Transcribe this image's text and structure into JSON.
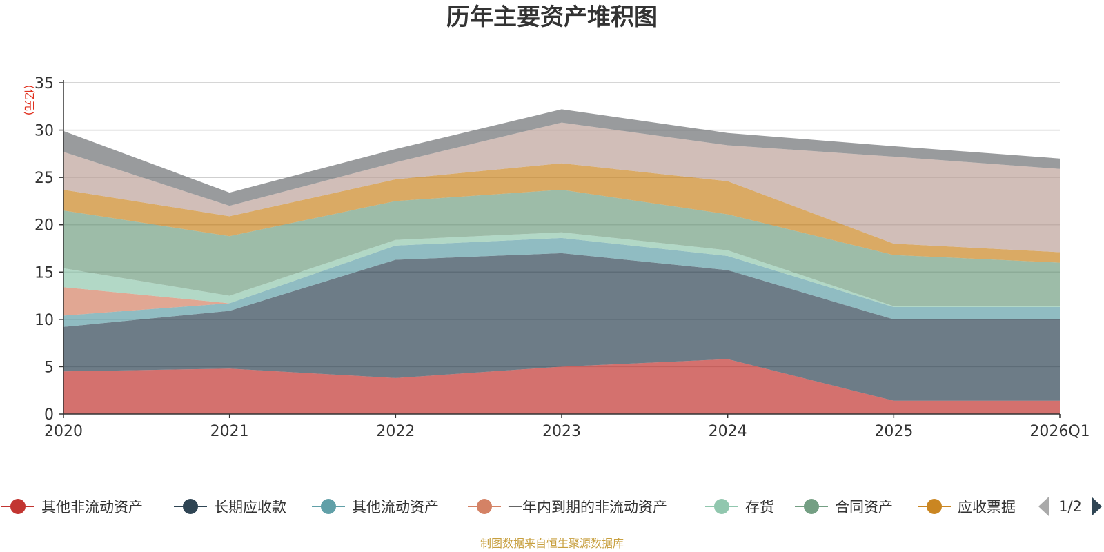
{
  "colors": {
    "grid": "#c8c8c8",
    "axis": "#333333",
    "unit": "#e0301e",
    "source": "#c8a040",
    "pager_active": "#2f4554",
    "pager_inactive": "#aaaaaa"
  },
  "pager": {
    "text": "1/2",
    "prev_icon": "triangle-left-icon",
    "next_icon": "triangle-right-icon"
  },
  "source_note": "制图数据来自恒生聚源数据库",
  "chart_data": {
    "type": "area",
    "stacked": true,
    "title": "历年主要资产堆积图",
    "unit_label": "(亿元)",
    "categories": [
      "2020",
      "2021",
      "2022",
      "2023",
      "2024",
      "2025",
      "2026Q1"
    ],
    "ylim": [
      0,
      35
    ],
    "yticks": [
      0,
      5,
      10,
      15,
      20,
      25,
      30,
      35
    ],
    "grid": true,
    "legend_position": "bottom",
    "series": [
      {
        "name": "其他非流动资产",
        "color": "#c23531",
        "values": [
          4.5,
          4.8,
          3.8,
          5.0,
          5.8,
          1.4,
          1.4
        ],
        "in_legend": true
      },
      {
        "name": "长期应收款",
        "color": "#2f4554",
        "values": [
          4.7,
          6.1,
          12.5,
          12.0,
          9.4,
          8.6,
          8.6
        ],
        "in_legend": true
      },
      {
        "name": "其他流动资产",
        "color": "#61a0a8",
        "values": [
          1.2,
          0.8,
          1.5,
          1.6,
          1.5,
          1.3,
          1.3
        ],
        "in_legend": true
      },
      {
        "name": "一年内到期的非流动资产",
        "color": "#d48265",
        "values": [
          3.0,
          0.0,
          0.0,
          0.0,
          0.0,
          0.0,
          0.0
        ],
        "in_legend": true
      },
      {
        "name": "存货",
        "color": "#91c7ae",
        "values": [
          2.0,
          0.8,
          0.6,
          0.6,
          0.6,
          0.1,
          0.1
        ],
        "in_legend": true
      },
      {
        "name": "合同资产",
        "color": "#749f83",
        "values": [
          6.1,
          6.3,
          4.1,
          4.5,
          3.8,
          5.4,
          4.6
        ],
        "in_legend": true
      },
      {
        "name": "应收票据",
        "color": "#ca8622",
        "values": [
          2.2,
          2.1,
          2.3,
          2.8,
          3.5,
          1.2,
          1.1
        ],
        "in_legend": true
      },
      {
        "name": "",
        "color": "#bda29a",
        "values": [
          4.0,
          1.1,
          1.8,
          4.3,
          3.8,
          9.2,
          8.8
        ],
        "in_legend": false
      },
      {
        "name": "",
        "color": "#6e7074",
        "values": [
          2.2,
          1.4,
          1.4,
          1.4,
          1.3,
          1.1,
          1.1
        ],
        "in_legend": false
      }
    ]
  }
}
